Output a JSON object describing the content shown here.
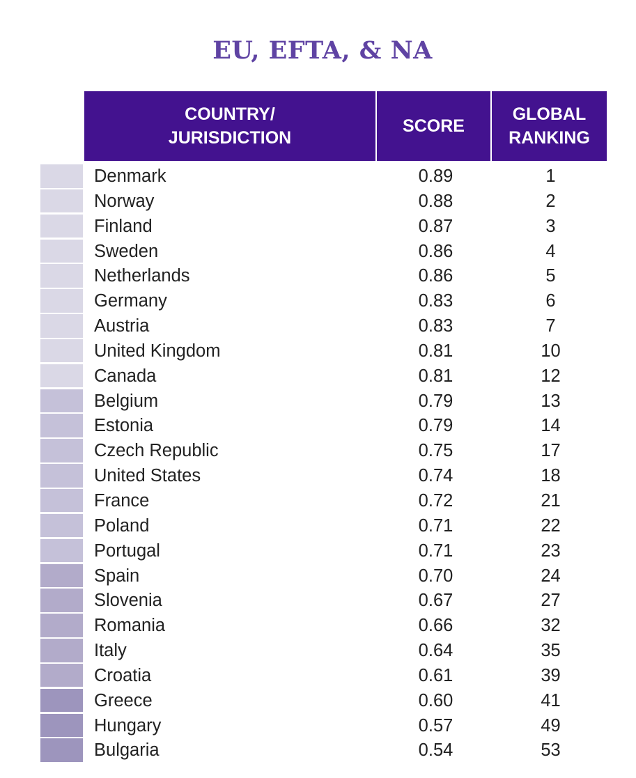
{
  "title": "EU, EFTA, & NA",
  "colors": {
    "header": "#43128f",
    "title": "#5f43a3"
  },
  "chart_data": {
    "type": "table",
    "columns": [
      "COUNTRY/ JURISDICTION",
      "SCORE",
      "GLOBAL RANKING"
    ],
    "header": {
      "country": "COUNTRY/\nJURISDICTION",
      "score": "SCORE",
      "ranking": "GLOBAL\nRANKING"
    },
    "rows": [
      {
        "country": "Denmark",
        "score": "0.89",
        "rank": "1",
        "color": "#dad8e6"
      },
      {
        "country": "Norway",
        "score": "0.88",
        "rank": "2",
        "color": "#dad8e6"
      },
      {
        "country": "Finland",
        "score": "0.87",
        "rank": "3",
        "color": "#dad8e6"
      },
      {
        "country": "Sweden",
        "score": "0.86",
        "rank": "4",
        "color": "#dad8e6"
      },
      {
        "country": "Netherlands",
        "score": "0.86",
        "rank": "5",
        "color": "#dad8e6"
      },
      {
        "country": "Germany",
        "score": "0.83",
        "rank": "6",
        "color": "#dad8e6"
      },
      {
        "country": "Austria",
        "score": "0.83",
        "rank": "7",
        "color": "#dad8e6"
      },
      {
        "country": "United Kingdom",
        "score": "0.81",
        "rank": "10",
        "color": "#dad8e6"
      },
      {
        "country": "Canada",
        "score": "0.81",
        "rank": "12",
        "color": "#dad8e6"
      },
      {
        "country": "Belgium",
        "score": "0.79",
        "rank": "13",
        "color": "#c5c1d9"
      },
      {
        "country": "Estonia",
        "score": "0.79",
        "rank": "14",
        "color": "#c5c1d9"
      },
      {
        "country": "Czech Republic",
        "score": "0.75",
        "rank": "17",
        "color": "#c5c1d9"
      },
      {
        "country": "United States",
        "score": "0.74",
        "rank": "18",
        "color": "#c5c1d9"
      },
      {
        "country": "France",
        "score": "0.72",
        "rank": "21",
        "color": "#c5c1d9"
      },
      {
        "country": "Poland",
        "score": "0.71",
        "rank": "22",
        "color": "#c5c1d9"
      },
      {
        "country": "Portugal",
        "score": "0.71",
        "rank": "23",
        "color": "#c5c1d9"
      },
      {
        "country": "Spain",
        "score": "0.70",
        "rank": "24",
        "color": "#b2abca"
      },
      {
        "country": "Slovenia",
        "score": "0.67",
        "rank": "27",
        "color": "#b2abca"
      },
      {
        "country": "Romania",
        "score": "0.66",
        "rank": "32",
        "color": "#b2abca"
      },
      {
        "country": "Italy",
        "score": "0.64",
        "rank": "35",
        "color": "#b2abca"
      },
      {
        "country": "Croatia",
        "score": "0.61",
        "rank": "39",
        "color": "#b2abca"
      },
      {
        "country": "Greece",
        "score": "0.60",
        "rank": "41",
        "color": "#9d95bd"
      },
      {
        "country": "Hungary",
        "score": "0.57",
        "rank": "49",
        "color": "#9d95bd"
      },
      {
        "country": "Bulgaria",
        "score": "0.54",
        "rank": "53",
        "color": "#9d95bd"
      }
    ]
  }
}
